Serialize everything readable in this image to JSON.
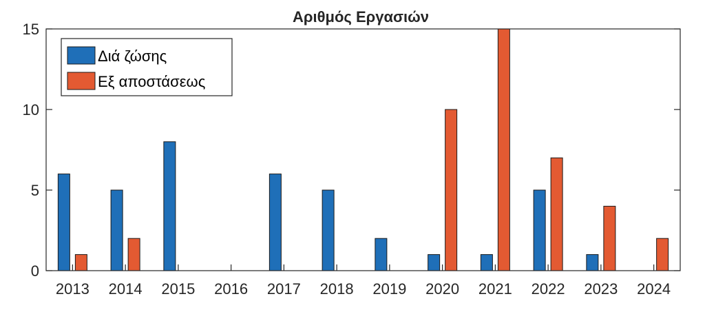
{
  "chart_data": {
    "type": "bar",
    "title": "Αριθμός Εργασιών",
    "categories": [
      "2013",
      "2014",
      "2015",
      "2016",
      "2017",
      "2018",
      "2019",
      "2020",
      "2021",
      "2022",
      "2023",
      "2024"
    ],
    "series": [
      {
        "name": "Διά ζώσης",
        "color": "#1f6fb8",
        "values": [
          6,
          5,
          8,
          0,
          6,
          5,
          2,
          1,
          1,
          5,
          1,
          0
        ]
      },
      {
        "name": "Εξ αποστάσεως",
        "color": "#e35a32",
        "values": [
          1,
          2,
          0,
          0,
          0,
          0,
          0,
          10,
          15,
          7,
          4,
          2
        ]
      }
    ],
    "ylim": [
      0,
      15
    ],
    "yticks": [
      0,
      5,
      10,
      15
    ],
    "xlabel": "",
    "ylabel": "",
    "legend_position": "top-left",
    "grid": false
  }
}
